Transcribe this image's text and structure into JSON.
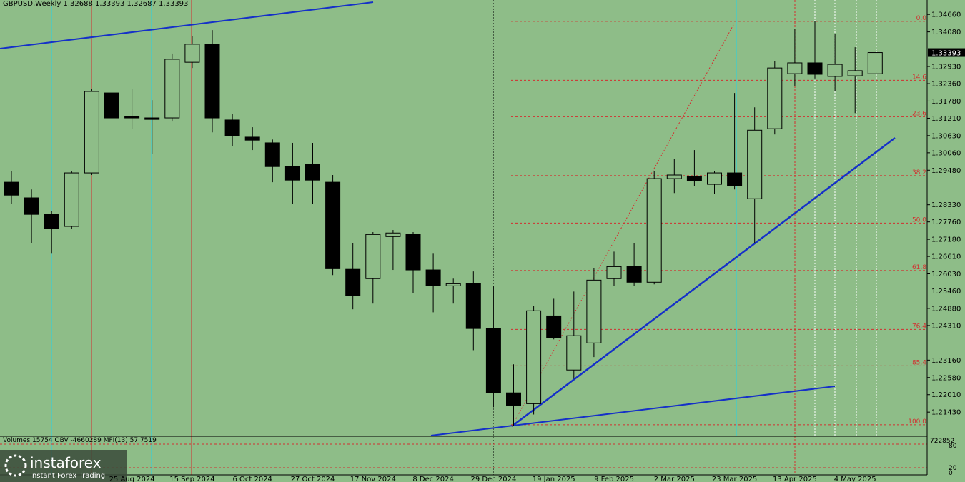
{
  "chart_data": {
    "type": "candlestick",
    "title": "GBPUSD,Weekly  1.32688 1.33393 1.32687 1.33393",
    "categories": [
      null,
      null,
      null,
      null,
      null,
      null,
      "25 Aug 2024",
      null,
      null,
      "15 Sep 2024",
      null,
      null,
      "6 Oct 2024",
      null,
      null,
      "27 Oct 2024",
      null,
      null,
      "17 Nov 2024",
      null,
      null,
      "8 Dec 2024",
      null,
      null,
      "29 Dec 2024",
      null,
      null,
      "19 Jan 2025",
      null,
      null,
      "9 Feb 2025",
      null,
      null,
      "2 Mar 2025",
      null,
      null,
      "23 Mar 2025",
      null,
      null,
      "13 Apr 2025",
      null,
      null,
      "4 May 2025",
      null
    ],
    "open": [
      1.2908,
      1.2856,
      1.2801,
      1.2761,
      1.2939,
      1.3205,
      1.3127,
      1.3122,
      1.3122,
      1.3307,
      1.3367,
      1.3115,
      1.3058,
      1.3039,
      1.296,
      1.2967,
      1.2908,
      1.2618,
      1.2587,
      1.2727,
      1.2734,
      1.2616,
      1.2563,
      1.257,
      1.2421,
      1.2207,
      1.2171,
      1.2463,
      1.2283,
      1.2373,
      1.2587,
      1.2627,
      1.2575,
      1.292,
      1.2927,
      1.2901,
      1.2939,
      1.2853,
      1.3086,
      1.3269,
      1.3305,
      1.326,
      1.3262,
      1.32688
    ],
    "high": [
      1.2944,
      1.2884,
      1.2813,
      1.2944,
      1.3217,
      1.3264,
      1.3217,
      1.3181,
      1.3336,
      1.3395,
      1.3414,
      1.3134,
      1.3091,
      1.305,
      1.3039,
      1.3039,
      1.2932,
      1.2706,
      1.2742,
      1.2749,
      1.2742,
      1.267,
      1.2587,
      1.2611,
      1.2563,
      1.2302,
      1.2497,
      1.252,
      1.2544,
      1.2623,
      1.2677,
      1.2706,
      1.2944,
      1.2986,
      1.3015,
      1.2944,
      1.3205,
      1.3157,
      1.3312,
      1.3419,
      1.3443,
      1.3402,
      1.3357,
      1.33393
    ],
    "low": [
      1.2837,
      1.2706,
      1.267,
      1.2753,
      1.2932,
      1.311,
      1.3086,
      1.3003,
      1.311,
      1.3288,
      1.3074,
      1.3027,
      1.3015,
      1.2908,
      1.2837,
      1.2837,
      1.2599,
      1.2485,
      1.2504,
      1.2616,
      1.2539,
      1.2475,
      1.2504,
      1.2349,
      1.2159,
      1.2097,
      1.2135,
      1.2385,
      1.2254,
      1.2326,
      1.2563,
      1.2563,
      1.2568,
      1.2872,
      1.2896,
      1.2868,
      1.2884,
      1.2706,
      1.3067,
      1.3229,
      1.3253,
      1.321,
      1.3138,
      1.32687
    ],
    "close": [
      1.2865,
      1.2801,
      1.2753,
      1.2939,
      1.321,
      1.3122,
      1.3122,
      1.3117,
      1.3317,
      1.3367,
      1.3122,
      1.3062,
      1.3048,
      1.296,
      1.2915,
      1.2915,
      1.262,
      1.253,
      1.2734,
      1.2739,
      1.2616,
      1.2563,
      1.257,
      1.2421,
      1.2207,
      1.2166,
      1.248,
      1.239,
      1.2397,
      1.2582,
      1.2627,
      1.2575,
      1.292,
      1.2932,
      1.2913,
      1.2939,
      1.2896,
      1.3081,
      1.3288,
      1.3305,
      1.3267,
      1.33,
      1.3279,
      1.33393
    ],
    "ylim": [
      1.2065,
      1.3514
    ],
    "yticks": [
      {
        "value": 1.3466,
        "label": "1.34660"
      },
      {
        "value": 1.3408,
        "label": "1.34080"
      },
      {
        "value": 1.3293,
        "label": "1.32930"
      },
      {
        "value": 1.3236,
        "label": "1.32360"
      },
      {
        "value": 1.3178,
        "label": "1.31780"
      },
      {
        "value": 1.3121,
        "label": "1.31210"
      },
      {
        "value": 1.3063,
        "label": "1.30630"
      },
      {
        "value": 1.3006,
        "label": "1.30060"
      },
      {
        "value": 1.2948,
        "label": "1.29480"
      },
      {
        "value": 1.2833,
        "label": "1.28330"
      },
      {
        "value": 1.2776,
        "label": "1.27760"
      },
      {
        "value": 1.2718,
        "label": "1.27180"
      },
      {
        "value": 1.2661,
        "label": "1.26610"
      },
      {
        "value": 1.2603,
        "label": "1.26030"
      },
      {
        "value": 1.2546,
        "label": "1.25460"
      },
      {
        "value": 1.2488,
        "label": "1.24880"
      },
      {
        "value": 1.2431,
        "label": "1.24310"
      },
      {
        "value": 1.2316,
        "label": "1.23160"
      },
      {
        "value": 1.2258,
        "label": "1.22580"
      },
      {
        "value": 1.2201,
        "label": "1.22010"
      },
      {
        "value": 1.2143,
        "label": "1.21430"
      }
    ],
    "fib_levels": [
      {
        "value": 1.3443,
        "label": "0.0"
      },
      {
        "value": 1.3247,
        "label": "14.6"
      },
      {
        "value": 1.3126,
        "label": "23.6"
      },
      {
        "value": 1.293,
        "label": "38.2"
      },
      {
        "value": 1.2772,
        "label": "50.0"
      },
      {
        "value": 1.2614,
        "label": "61.8"
      },
      {
        "value": 1.2418,
        "label": "76.4"
      },
      {
        "value": 1.2297,
        "label": "85.4"
      },
      {
        "value": 1.2101,
        "label": "100.0"
      }
    ],
    "indicator_title": "Volumes 15754  OBV -4660289  MFI(13) 57.7519",
    "indicator_scale_labels": [
      "722852",
      "80",
      "20",
      "0"
    ],
    "brand": {
      "name": "instaforex",
      "tagline": "Instant Forex Trading"
    }
  }
}
